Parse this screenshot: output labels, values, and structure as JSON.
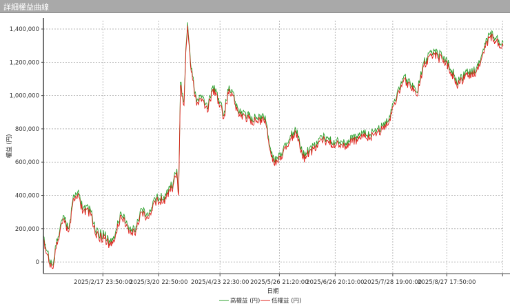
{
  "window": {
    "title": "詳細權益曲線"
  },
  "chart_data": {
    "type": "line",
    "title": "",
    "xlabel": "日期",
    "ylabel": "權益 (円)",
    "ylim": [
      -70000,
      1450000
    ],
    "xlim": [
      "2025-01-16",
      "2025-09-28"
    ],
    "grid": true,
    "legend": "bottom",
    "y_ticks": [
      0,
      200000,
      400000,
      600000,
      800000,
      1000000,
      1200000,
      1400000
    ],
    "y_tick_labels": [
      "0",
      "200,000",
      "400,000",
      "600,000",
      "800,000",
      "1,000,000",
      "1,200,000",
      "1,400,000"
    ],
    "x_ticks": [
      {
        "date": "2025-02-17T23:50:00",
        "label": "2025/2/17 23:50:00"
      },
      {
        "date": "2025-03-20T22:50:00",
        "label": "2025/3/20 22:50:00"
      },
      {
        "date": "2025-04-23T22:30:00",
        "label": "2025/4/23 22:30:00"
      },
      {
        "date": "2025-05-26T21:20:00",
        "label": "2025/5/26 21:20:00"
      },
      {
        "date": "2025-06-26T20:10:00",
        "label": "2025/6/26 20:10:00"
      },
      {
        "date": "2025-07-28T19:00:00",
        "label": "2025/7/28 19:00:00"
      },
      {
        "date": "2025-08-27T17:50:00",
        "label": "2025/8/27 17:50:00"
      },
      {
        "date": "2025-09-27T16:40:00",
        "label": ""
      }
    ],
    "x": [
      "2025-01-16",
      "2025-01-19",
      "2025-01-21",
      "2025-01-23",
      "2025-01-27",
      "2025-01-30",
      "2025-02-02",
      "2025-02-04",
      "2025-02-07",
      "2025-02-11",
      "2025-02-14",
      "2025-02-19",
      "2025-02-22",
      "2025-02-25",
      "2025-02-28",
      "2025-03-04",
      "2025-03-08",
      "2025-03-11",
      "2025-03-15",
      "2025-03-19",
      "2025-03-25",
      "2025-03-29",
      "2025-03-31",
      "2025-04-01",
      "2025-04-02",
      "2025-04-04",
      "2025-04-05",
      "2025-04-06",
      "2025-04-08",
      "2025-04-11",
      "2025-04-14",
      "2025-04-17",
      "2025-04-20",
      "2025-04-24",
      "2025-04-26",
      "2025-04-29",
      "2025-05-04",
      "2025-05-10",
      "2025-05-14",
      "2025-05-19",
      "2025-05-22",
      "2025-05-25",
      "2025-05-29",
      "2025-06-02",
      "2025-06-05",
      "2025-06-09",
      "2025-06-15",
      "2025-06-19",
      "2025-06-25",
      "2025-07-02",
      "2025-07-10",
      "2025-07-18",
      "2025-07-23",
      "2025-07-27",
      "2025-07-31",
      "2025-08-04",
      "2025-08-08",
      "2025-08-11",
      "2025-08-15",
      "2025-08-19",
      "2025-08-25",
      "2025-08-29",
      "2025-09-03",
      "2025-09-07",
      "2025-09-13",
      "2025-09-17",
      "2025-09-21",
      "2025-09-24",
      "2025-09-28"
    ],
    "series": [
      {
        "name": "高權益 (円)",
        "color": "#2ca02c",
        "values": [
          160000,
          20000,
          -20000,
          100000,
          280000,
          200000,
          400000,
          420000,
          320000,
          320000,
          180000,
          160000,
          120000,
          180000,
          300000,
          220000,
          180000,
          320000,
          280000,
          380000,
          400000,
          480000,
          560000,
          420000,
          1080000,
          960000,
          1280000,
          1440000,
          1160000,
          960000,
          1000000,
          920000,
          1060000,
          960000,
          880000,
          1060000,
          920000,
          880000,
          860000,
          880000,
          680000,
          600000,
          680000,
          760000,
          800000,
          640000,
          700000,
          760000,
          720000,
          720000,
          760000,
          780000,
          820000,
          880000,
          1000000,
          1120000,
          1060000,
          1020000,
          1200000,
          1260000,
          1240000,
          1180000,
          1080000,
          1140000,
          1160000,
          1280000,
          1380000,
          1340000,
          1320000
        ]
      },
      {
        "name": "低權益 (円)",
        "color": "#e0201b",
        "values": [
          140000,
          0,
          -40000,
          80000,
          260000,
          180000,
          380000,
          400000,
          300000,
          300000,
          160000,
          140000,
          100000,
          160000,
          280000,
          200000,
          160000,
          300000,
          260000,
          360000,
          380000,
          460000,
          540000,
          400000,
          1060000,
          940000,
          1260000,
          1420000,
          1140000,
          940000,
          980000,
          900000,
          1040000,
          940000,
          860000,
          1040000,
          900000,
          860000,
          840000,
          860000,
          660000,
          580000,
          660000,
          740000,
          780000,
          620000,
          680000,
          740000,
          700000,
          700000,
          740000,
          760000,
          800000,
          860000,
          980000,
          1100000,
          1040000,
          1000000,
          1180000,
          1240000,
          1220000,
          1160000,
          1060000,
          1120000,
          1140000,
          1260000,
          1360000,
          1320000,
          1300000
        ]
      }
    ]
  }
}
